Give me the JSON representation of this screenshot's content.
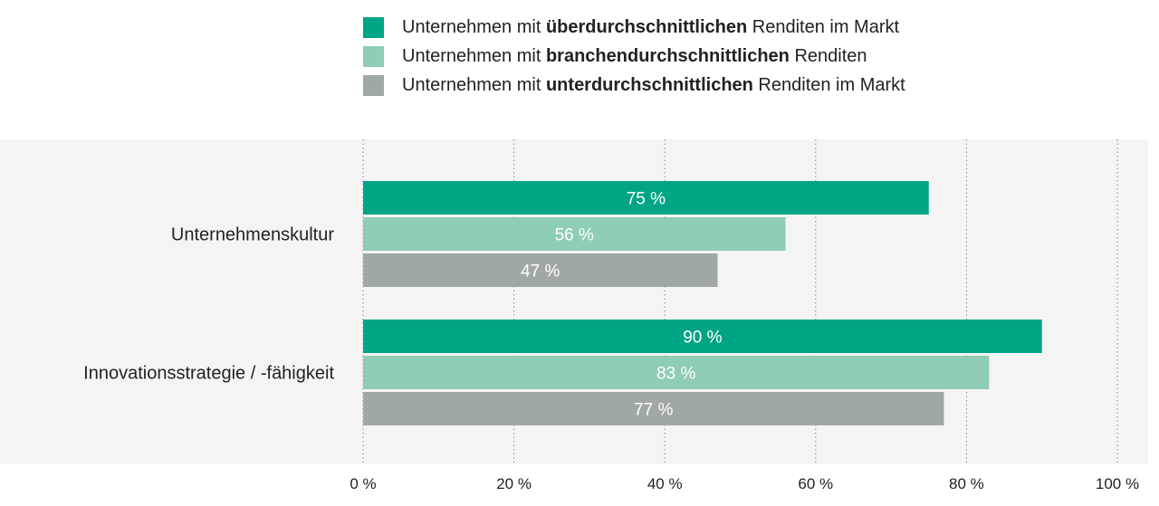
{
  "chart_data": {
    "type": "bar",
    "orientation": "horizontal",
    "categories": [
      "Unternehmenskultur",
      "Innovationsstrategie / -fähigkeit"
    ],
    "series": [
      {
        "name": "Unternehmen mit überdurchschnittlichen Renditen im Markt",
        "name_prefix": "Unternehmen mit ",
        "name_bold": "überdurchschnittlichen",
        "name_suffix": " Renditen im Markt",
        "color": "#00a586",
        "values": [
          75,
          90
        ],
        "labels": [
          "75 %",
          "90 %"
        ]
      },
      {
        "name": "Unternehmen mit branchendurchschnittlichen Renditen",
        "name_prefix": "Unternehmen mit ",
        "name_bold": "branchendurchschnittlichen",
        "name_suffix": " Renditen",
        "color": "#8fcdb5",
        "values": [
          56,
          83
        ],
        "labels": [
          "56 %",
          "83 %"
        ]
      },
      {
        "name": "Unternehmen mit unterdurchschnittlichen Renditen im Markt",
        "name_prefix": "Unternehmen mit ",
        "name_bold": "unterdurchschnittlichen",
        "name_suffix": " Renditen im Markt",
        "color": "#a0a8a5",
        "values": [
          47,
          77
        ],
        "labels": [
          "47 %",
          "77 %"
        ]
      }
    ],
    "xlim": [
      0,
      100
    ],
    "xticks": [
      0,
      20,
      40,
      60,
      80,
      100
    ],
    "xtick_labels": [
      "0 %",
      "20 %",
      "40 %",
      "60 %",
      "80 %",
      "100 %"
    ],
    "grid": "vertical-dotted",
    "legend_position": "top",
    "plot_background": "#f4f4f4",
    "label_color": "#ffffff"
  }
}
